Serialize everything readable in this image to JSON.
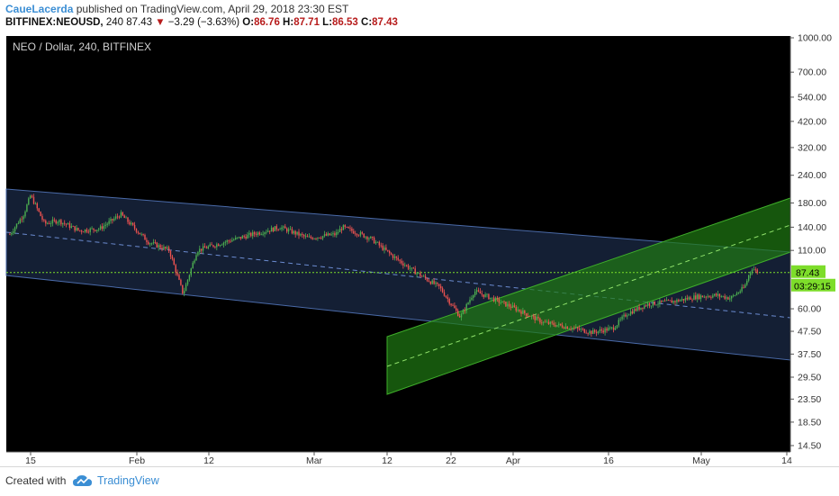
{
  "header": {
    "author": "CaueLacerda",
    "published_text": "published on TradingView.com, April 29, 2018 23:30 EST",
    "symbol": "BITFINEX:NEOUSD,",
    "interval": "240",
    "last": "87.43",
    "change": "−3.29 (−3.63%)",
    "open_label": "O:",
    "open": "86.76",
    "high_label": "H:",
    "high": "87.71",
    "low_label": "L:",
    "low": "86.53",
    "close_label": "C:",
    "close": "87.43"
  },
  "chart": {
    "legend": "NEO / Dollar, 240, BITFINEX",
    "last_price_label": "87.43",
    "countdown_label": "03:29:15"
  },
  "footer": {
    "created_with": "Created with",
    "brand": "TradingView"
  },
  "colors": {
    "background": "#000000",
    "up_candle": "#4caf50",
    "down_candle": "#ef5350",
    "blue_channel": "#4a6aa8",
    "green_channel": "#3fae2a",
    "price_line": "#7ddd2a"
  },
  "chart_data": {
    "type": "candlestick",
    "symbol": "NEO / Dollar",
    "interval": "240",
    "exchange": "BITFINEX",
    "y_scale": "log",
    "ylim": [
      13.5,
      1040
    ],
    "y_ticks": [
      "1000.00",
      "700.00",
      "540.00",
      "420.00",
      "320.00",
      "240.00",
      "180.00",
      "140.00",
      "110.00",
      "87.43",
      "60.00",
      "47.50",
      "37.50",
      "29.50",
      "23.50",
      "18.50",
      "14.50"
    ],
    "x_ticks": [
      "15",
      "Feb",
      "12",
      "Mar",
      "12",
      "22",
      "Apr",
      "16",
      "May",
      "14"
    ],
    "last_price": 87.43,
    "price_path": [
      [
        "Jan 12",
        130
      ],
      [
        "Jan 14",
        160
      ],
      [
        "Jan 15",
        195
      ],
      [
        "Jan 17",
        145
      ],
      [
        "Jan 19",
        150
      ],
      [
        "Jan 22",
        135
      ],
      [
        "Jan 25",
        138
      ],
      [
        "Jan 28",
        160
      ],
      [
        "Feb 1",
        120
      ],
      [
        "Feb 4",
        110
      ],
      [
        "Feb 6",
        70
      ],
      [
        "Feb 8",
        110
      ],
      [
        "Feb 12",
        120
      ],
      [
        "Feb 16",
        130
      ],
      [
        "Feb 20",
        140
      ],
      [
        "Feb 24",
        125
      ],
      [
        "Feb 28",
        130
      ],
      [
        "Mar 1",
        140
      ],
      [
        "Mar 5",
        125
      ],
      [
        "Mar 8",
        105
      ],
      [
        "Mar 11",
        90
      ],
      [
        "Mar 15",
        75
      ],
      [
        "Mar 18",
        55
      ],
      [
        "Mar 20",
        72
      ],
      [
        "Mar 22",
        68
      ],
      [
        "Mar 26",
        60
      ],
      [
        "Mar 30",
        52
      ],
      [
        "Apr 2",
        50
      ],
      [
        "Apr 6",
        47
      ],
      [
        "Apr 9",
        49
      ],
      [
        "Apr 11",
        57
      ],
      [
        "Apr 14",
        63
      ],
      [
        "Apr 18",
        65
      ],
      [
        "Apr 21",
        68
      ],
      [
        "Apr 24",
        69
      ],
      [
        "Apr 26",
        67
      ],
      [
        "Apr 28",
        75
      ],
      [
        "Apr 29",
        92
      ],
      [
        "Apr 30",
        87.43
      ]
    ]
  }
}
